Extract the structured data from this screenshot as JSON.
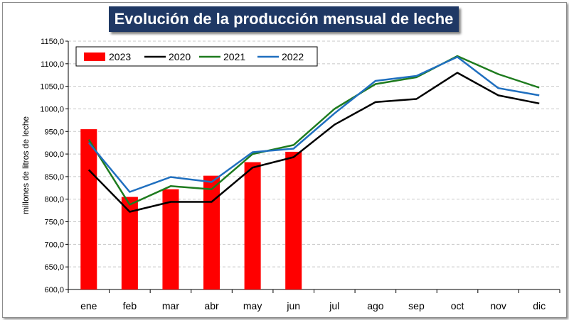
{
  "chart_data": {
    "type": "bar+line",
    "title": "Evolución de la producción mensual de leche",
    "ylabel": "millones de litros de leche",
    "xlabel": "",
    "categories": [
      "ene",
      "feb",
      "mar",
      "abr",
      "may",
      "jun",
      "jul",
      "ago",
      "sep",
      "oct",
      "nov",
      "dic"
    ],
    "ylim": [
      600,
      1150
    ],
    "yticks": [
      "600,0",
      "650,0",
      "700,0",
      "750,0",
      "800,0",
      "850,0",
      "900,0",
      "950,0",
      "1000,0",
      "1050,0",
      "1100,0",
      "1150,0"
    ],
    "grid": true,
    "legend_position": "top-left",
    "bars": {
      "name": "2023",
      "color": "#ff0000",
      "values": [
        955,
        805,
        822,
        852,
        882,
        905
      ]
    },
    "series": [
      {
        "name": "2020",
        "color": "#000000",
        "values": [
          865,
          772,
          794,
          794,
          870,
          893,
          965,
          1015,
          1022,
          1080,
          1030,
          1012
        ]
      },
      {
        "name": "2021",
        "color": "#1e7b1e",
        "values": [
          932,
          788,
          829,
          822,
          900,
          920,
          1000,
          1055,
          1070,
          1117,
          1077,
          1047
        ]
      },
      {
        "name": "2022",
        "color": "#1f6fbf",
        "values": [
          925,
          816,
          849,
          838,
          904,
          912,
          990,
          1062,
          1073,
          1115,
          1046,
          1030
        ]
      }
    ]
  }
}
